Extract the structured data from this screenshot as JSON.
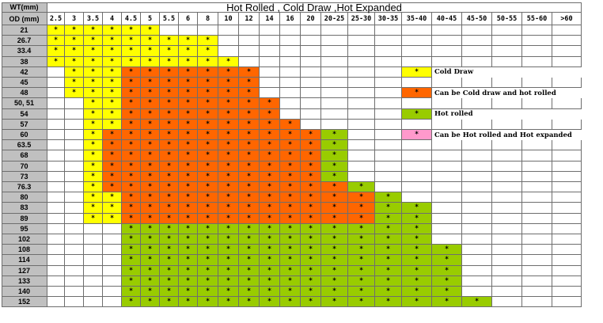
{
  "table": {
    "corner_label": "WT(mm)",
    "row_header_label": "OD (mm)",
    "title": "Hot Rolled , Cold Draw ,Hot Expanded",
    "wall_thickness": [
      "2.5",
      "3",
      "3.5",
      "4",
      "4.5",
      "5",
      "5.5",
      "6",
      "8",
      "10",
      "12",
      "14",
      "16",
      "20",
      "20-25",
      "25-30",
      "30-35",
      "35-40",
      "40-45",
      "45-50",
      "50-55",
      "55-60",
      ">60"
    ],
    "mark": "*",
    "rows": [
      {
        "od": "21",
        "cells": "yyyyyy................."
      },
      {
        "od": "26.7",
        "cells": "yyyyyyyyy.............."
      },
      {
        "od": "33.4",
        "cells": "yyyyyyyyy.............."
      },
      {
        "od": "38",
        "cells": "yyyyyyyyyy............."
      },
      {
        "od": "42",
        "cells": ".yyyooooooo............"
      },
      {
        "od": "45",
        "cells": ".yyyooooooo............"
      },
      {
        "od": "48",
        "cells": ".yyyooooooo............"
      },
      {
        "od": "50, 51",
        "cells": "..yyoooooooo..........."
      },
      {
        "od": "54",
        "cells": "..yyoooooooo..........."
      },
      {
        "od": "57",
        "cells": "..yyooooooooo.........."
      },
      {
        "od": "60",
        "cells": "..yooooooooooog........"
      },
      {
        "od": "63.5",
        "cells": "..yooooooooooog........"
      },
      {
        "od": "68",
        "cells": "..yooooooooooog........"
      },
      {
        "od": "70",
        "cells": "..yooooooooooog........"
      },
      {
        "od": "73",
        "cells": "..yooooooooooog........"
      },
      {
        "od": "76.3",
        "cells": "..yoooooooooooog......."
      },
      {
        "od": "80",
        "cells": "..yyoooooooooooog......"
      },
      {
        "od": "83",
        "cells": "..yyoooooooooooogg....."
      },
      {
        "od": "89",
        "cells": "..yyoooooooooooogg....."
      },
      {
        "od": "95",
        "cells": "....gggggggggggggg....."
      },
      {
        "od": "102",
        "cells": "....gggggggggggggg....."
      },
      {
        "od": "108",
        "cells": "....ggggggggggggggg...."
      },
      {
        "od": "114",
        "cells": "....ggggggggggggggg...."
      },
      {
        "od": "127",
        "cells": "....ggggggggggggggg...."
      },
      {
        "od": "133",
        "cells": "....ggggggggggggggg...."
      },
      {
        "od": "140",
        "cells": "....ggggggggggggggg...."
      },
      {
        "od": "152",
        "cells": "....gggggggggggggggg..."
      }
    ]
  },
  "legend": [
    {
      "key": "y",
      "row": 4,
      "label": "Cold Draw"
    },
    {
      "key": "o",
      "row": 6,
      "label": "Can be Cold draw and hot rolled"
    },
    {
      "key": "g",
      "row": 8,
      "label": "Hot rolled"
    },
    {
      "key": "p",
      "row": 10,
      "label": "Can be Hot rolled and Hot expanded"
    }
  ],
  "colors": {
    "y": "#ffff00",
    "o": "#ff6600",
    "g": "#99cc00",
    "p": "#ff99cc",
    "header": "#c0c0c0",
    "grid": "#6e6e6e"
  }
}
